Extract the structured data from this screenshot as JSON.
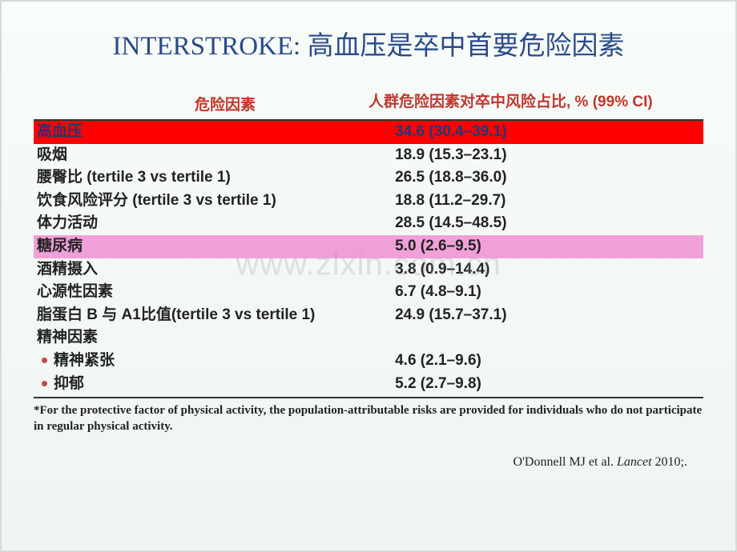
{
  "title": "INTERSTROKE: 高血压是卒中首要危险因素",
  "headers": {
    "left": "危险因素",
    "right": "人群危险因素对卒中风险占比, % (99% CI)"
  },
  "rows": [
    {
      "label": "高血压",
      "value": "34.6 (30.4–39.1)",
      "highlight": "red"
    },
    {
      "label": "吸烟",
      "value": "18.9 (15.3–23.1)",
      "highlight": null
    },
    {
      "label": "腰臀比 (tertile 3 vs tertile 1)",
      "value": "26.5 (18.8–36.0)",
      "highlight": null
    },
    {
      "label": "饮食风险评分 (tertile 3 vs tertile 1)",
      "value": "18.8 (11.2–29.7)",
      "highlight": null
    },
    {
      "label": "体力活动",
      "value": "28.5 (14.5–48.5)",
      "highlight": null
    },
    {
      "label": "糖尿病",
      "value": "5.0 (2.6–9.5)",
      "highlight": "pink"
    },
    {
      "label": "酒精摄入",
      "value": "3.8 (0.9–14.4)",
      "highlight": null
    },
    {
      "label": "心源性因素",
      "value": "6.7 (4.8–9.1)",
      "highlight": null
    },
    {
      "label": "脂蛋白 B 与 A1比值(tertile 3 vs tertile 1)",
      "value": "24.9 (15.7–37.1)",
      "highlight": null
    },
    {
      "label": "精神因素",
      "value": "",
      "highlight": null
    },
    {
      "label": "精神紧张",
      "value": "4.6 (2.1–9.6)",
      "highlight": null,
      "bullet": true
    },
    {
      "label": "抑郁",
      "value": "5.2 (2.7–9.8)",
      "highlight": null,
      "bullet": true
    }
  ],
  "footnote": "*For the protective factor of physical activity, the population-attributable risks are provided for individuals who do not participate in regular physical activity.",
  "citation_author": "O'Donnell MJ et al. ",
  "citation_journal": "Lancet",
  "citation_year": " 2010;.",
  "watermark": "www.zlxin.com.cn"
}
